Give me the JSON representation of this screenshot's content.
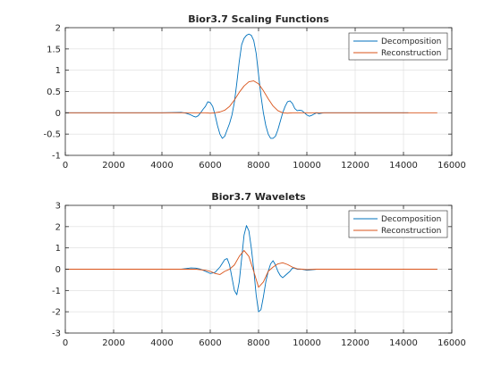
{
  "figure": {
    "background": "#ffffff"
  },
  "chart_data": [
    {
      "type": "line",
      "title": "Bior3.7 Scaling Functions",
      "xlim": [
        0,
        16000
      ],
      "ylim": [
        -1,
        2
      ],
      "xticks": [
        0,
        2000,
        4000,
        6000,
        8000,
        10000,
        12000,
        14000,
        16000
      ],
      "yticks": [
        -1,
        -0.5,
        0,
        0.5,
        1,
        1.5,
        2
      ],
      "ytick_labels": [
        "-1",
        "-0.5",
        "0",
        "0.5",
        "1",
        "1.5",
        "2"
      ],
      "grid": true,
      "legend": "top-right",
      "series": [
        {
          "name": "Decomposition",
          "color": "#0072bd",
          "x": [
            0,
            1000,
            2000,
            3000,
            4000,
            4800,
            5000,
            5200,
            5300,
            5400,
            5500,
            5600,
            5700,
            5800,
            5900,
            6000,
            6100,
            6200,
            6300,
            6400,
            6500,
            6600,
            6700,
            6800,
            6900,
            7000,
            7100,
            7200,
            7300,
            7400,
            7500,
            7600,
            7700,
            7800,
            7900,
            8000,
            8100,
            8200,
            8300,
            8400,
            8500,
            8600,
            8700,
            8800,
            8900,
            9000,
            9100,
            9200,
            9300,
            9400,
            9500,
            9600,
            9700,
            9800,
            9900,
            10000,
            10100,
            10200,
            10300,
            10400,
            10500,
            10700,
            11000,
            12000,
            13000,
            14000,
            14200
          ],
          "y": [
            0,
            0,
            0,
            0,
            0,
            0.01,
            -0.01,
            -0.05,
            -0.08,
            -0.1,
            -0.07,
            0.0,
            0.08,
            0.15,
            0.26,
            0.24,
            0.15,
            -0.05,
            -0.3,
            -0.5,
            -0.6,
            -0.55,
            -0.4,
            -0.25,
            -0.05,
            0.25,
            0.7,
            1.2,
            1.6,
            1.75,
            1.82,
            1.85,
            1.82,
            1.7,
            1.4,
            0.9,
            0.4,
            0.0,
            -0.3,
            -0.5,
            -0.6,
            -0.6,
            -0.55,
            -0.4,
            -0.2,
            0.0,
            0.15,
            0.26,
            0.28,
            0.22,
            0.1,
            0.05,
            0.06,
            0.05,
            0.0,
            -0.05,
            -0.08,
            -0.06,
            -0.03,
            0.0,
            -0.02,
            0.0,
            0.0,
            0.0,
            0.0,
            0.0,
            0.0
          ]
        },
        {
          "name": "Reconstruction",
          "color": "#d95319",
          "x": [
            0,
            5500,
            5800,
            6000,
            6200,
            6400,
            6600,
            6800,
            7000,
            7200,
            7400,
            7600,
            7800,
            8000,
            8200,
            8400,
            8600,
            8800,
            9000,
            9200,
            9400,
            9600,
            10000,
            15400
          ],
          "y": [
            0,
            0,
            0.0,
            -0.01,
            0.0,
            0.02,
            0.06,
            0.15,
            0.3,
            0.48,
            0.63,
            0.73,
            0.75,
            0.68,
            0.52,
            0.33,
            0.16,
            0.05,
            0.0,
            -0.01,
            0.0,
            0.0,
            0,
            0
          ]
        }
      ]
    },
    {
      "type": "line",
      "title": "Bior3.7 Wavelets",
      "xlim": [
        0,
        16000
      ],
      "ylim": [
        -3,
        3
      ],
      "xticks": [
        0,
        2000,
        4000,
        6000,
        8000,
        10000,
        12000,
        14000,
        16000
      ],
      "yticks": [
        -3,
        -2,
        -1,
        0,
        1,
        2,
        3
      ],
      "ytick_labels": [
        "-3",
        "-2",
        "-1",
        "0",
        "1",
        "2",
        "3"
      ],
      "grid": true,
      "legend": "top-right",
      "series": [
        {
          "name": "Decomposition",
          "color": "#0072bd",
          "x": [
            0,
            4800,
            5000,
            5200,
            5400,
            5600,
            5800,
            6000,
            6200,
            6400,
            6600,
            6700,
            6800,
            6900,
            7000,
            7100,
            7200,
            7300,
            7400,
            7500,
            7600,
            7700,
            7800,
            7900,
            8000,
            8100,
            8200,
            8300,
            8400,
            8500,
            8600,
            8700,
            8800,
            8900,
            9000,
            9100,
            9200,
            9300,
            9400,
            9500,
            9600,
            9800,
            10000,
            10200,
            10400,
            10600,
            15400
          ],
          "y": [
            0,
            0,
            0.03,
            0.06,
            0.05,
            0.0,
            -0.1,
            -0.2,
            -0.15,
            0.1,
            0.45,
            0.5,
            0.2,
            -0.4,
            -1.0,
            -1.2,
            -0.6,
            0.5,
            1.6,
            2.05,
            1.8,
            1.0,
            0.0,
            -1.2,
            -2.0,
            -1.9,
            -1.3,
            -0.6,
            -0.1,
            0.25,
            0.4,
            0.2,
            -0.1,
            -0.3,
            -0.4,
            -0.3,
            -0.2,
            -0.1,
            0.05,
            0.05,
            0.0,
            0.0,
            -0.05,
            -0.03,
            0.0,
            0.0,
            0
          ]
        },
        {
          "name": "Reconstruction",
          "color": "#d95319",
          "x": [
            0,
            5400,
            5800,
            6000,
            6200,
            6400,
            6600,
            6800,
            7000,
            7200,
            7400,
            7600,
            7800,
            8000,
            8200,
            8400,
            8600,
            8800,
            9000,
            9200,
            9400,
            9600,
            9800,
            10000,
            10400,
            15400
          ],
          "y": [
            0,
            0,
            -0.05,
            -0.1,
            -0.2,
            -0.25,
            -0.1,
            0.0,
            0.2,
            0.6,
            0.88,
            0.6,
            -0.1,
            -0.85,
            -0.6,
            -0.1,
            0.1,
            0.25,
            0.3,
            0.22,
            0.1,
            0.02,
            0.0,
            -0.02,
            0,
            0
          ]
        }
      ]
    }
  ]
}
